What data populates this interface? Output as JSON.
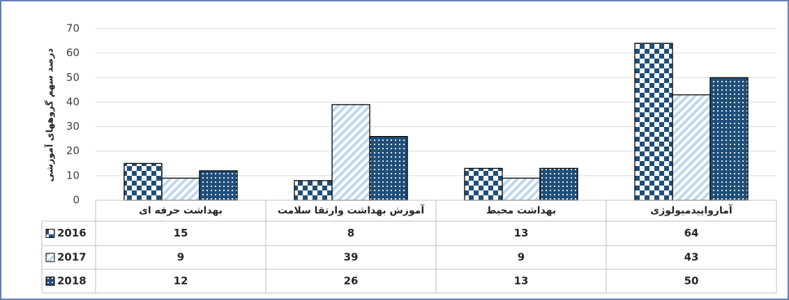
{
  "chart_data": {
    "type": "bar",
    "y_label": "درصد سهم گروههای آموزشی",
    "categories": [
      "بهداشت حرفه ای",
      "آموزش بهداشت وارتقا سلامت",
      "بهداشت محیط",
      "آمارواپیدمیولوژی"
    ],
    "series": [
      {
        "name": "2016",
        "color": "#1f4e79",
        "pattern": "checker",
        "values": [
          15,
          8,
          13,
          64
        ]
      },
      {
        "name": "2017",
        "color": "#bdd7ee",
        "pattern": "stripes",
        "values": [
          9,
          39,
          9,
          43
        ]
      },
      {
        "name": "2018",
        "color": "#1f4e79",
        "pattern": "dots",
        "values": [
          12,
          26,
          13,
          50
        ]
      }
    ],
    "ylim": [
      0,
      70
    ],
    "yticks": [
      0,
      10,
      20,
      30,
      40,
      50,
      60,
      70
    ],
    "grid": true,
    "data_table": true
  }
}
